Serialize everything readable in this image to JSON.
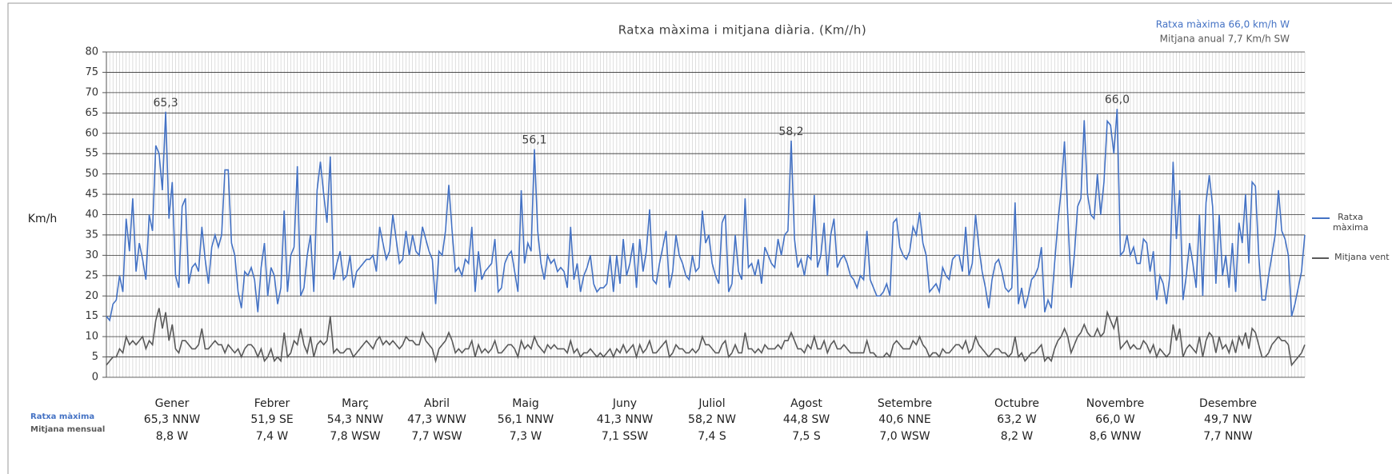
{
  "chart_data": {
    "type": "line",
    "title": "Ratxa màxima i mitjana diària. (Km//h)",
    "summary": [
      "Ratxa màxima 66,0 km/h  W",
      "Mitjana anual 7,7 Km/h SW"
    ],
    "y_label": "Km/h",
    "ylim": [
      0,
      80
    ],
    "yticks": [
      0,
      5,
      10,
      15,
      20,
      25,
      30,
      35,
      40,
      45,
      50,
      55,
      60,
      65,
      70,
      75,
      80
    ],
    "grid": true,
    "legend": "right",
    "series": [
      {
        "name": "Ratxa màxima",
        "color": "#4472c4",
        "values": [
          15,
          14,
          18,
          19,
          25,
          21,
          39,
          31,
          44,
          26,
          33,
          29,
          24,
          40,
          36,
          57,
          55,
          46,
          65.3,
          39,
          48,
          25,
          22,
          42,
          44,
          23,
          27,
          28,
          26,
          37,
          29,
          23,
          32,
          35,
          32,
          35,
          51,
          51,
          33,
          30,
          21,
          17,
          26,
          25,
          27,
          24,
          16,
          27,
          33,
          20,
          27,
          25,
          18,
          22,
          41,
          21,
          30,
          32,
          51.9,
          20,
          22,
          30,
          35,
          21,
          46,
          53,
          45,
          38,
          54.3,
          24,
          28,
          31,
          24,
          25,
          30,
          22,
          26,
          27,
          28,
          29,
          29,
          30,
          26,
          37,
          33,
          29,
          31,
          40,
          34,
          28,
          29,
          36,
          30,
          35,
          31,
          30,
          37,
          34,
          31,
          29,
          18,
          31,
          30,
          36,
          47.3,
          36,
          26,
          27,
          25,
          29,
          28,
          37,
          21,
          31,
          24,
          26,
          27,
          28,
          34,
          21,
          22,
          28,
          30,
          31,
          26,
          21,
          46,
          28,
          33,
          31,
          56.1,
          36,
          28,
          24,
          30,
          28,
          29,
          26,
          27,
          26,
          22,
          37,
          24,
          28,
          21,
          25,
          27,
          30,
          23,
          21,
          22,
          22,
          23,
          30,
          21,
          30,
          23,
          34,
          25,
          28,
          33,
          22,
          34,
          26,
          31,
          41.3,
          24,
          23,
          28,
          32,
          36,
          22,
          26,
          35,
          30,
          28,
          25,
          24,
          30,
          26,
          27,
          41,
          33,
          35,
          28,
          25,
          23,
          38,
          40,
          21,
          23,
          35,
          26,
          24,
          44,
          27,
          28,
          25,
          29,
          23,
          32,
          30,
          28,
          27,
          34,
          30,
          35,
          36,
          58.2,
          34,
          27,
          29,
          25,
          30,
          29,
          44.8,
          27,
          30,
          38,
          25,
          35,
          39,
          27,
          29,
          30,
          28,
          25,
          24,
          22,
          25,
          24,
          36,
          24,
          22,
          20,
          20,
          21,
          23,
          20,
          38,
          39,
          32,
          30,
          29,
          31,
          37,
          35,
          40.6,
          33,
          30,
          21,
          22,
          23,
          21,
          27,
          25,
          24,
          29,
          30,
          30,
          26,
          37,
          25,
          28,
          40,
          32,
          26,
          22,
          17,
          24,
          28,
          29,
          26,
          22,
          21,
          22,
          43,
          18,
          22,
          17,
          20,
          24,
          25,
          27,
          32,
          16,
          19,
          17,
          28,
          38,
          46,
          58,
          40,
          22,
          30,
          42,
          44,
          63.2,
          45,
          40,
          39,
          50,
          40,
          48,
          63,
          62,
          55,
          66.0,
          30,
          31,
          35,
          30,
          32,
          28,
          28,
          34,
          33,
          26,
          31,
          19,
          25,
          23,
          18,
          25,
          53,
          34,
          46,
          19,
          25,
          33,
          28,
          22,
          40,
          20,
          43,
          49.7,
          42,
          23,
          40,
          25,
          30,
          22,
          33,
          21,
          38,
          33,
          45,
          28,
          48,
          47,
          30,
          19,
          19,
          25,
          30,
          35,
          46,
          36,
          34,
          30,
          15,
          18,
          22,
          26,
          35
        ]
      },
      {
        "name": "Mitjana vent",
        "color": "#595959",
        "values": [
          3,
          4,
          5,
          5,
          7,
          6,
          10,
          8,
          9,
          8,
          9,
          10,
          7,
          9,
          8,
          14,
          17,
          12,
          16,
          9,
          13,
          7,
          6,
          9,
          9,
          8,
          7,
          7,
          8,
          12,
          7,
          7,
          8,
          9,
          8,
          8,
          6,
          8,
          7,
          6,
          7,
          5,
          7,
          8,
          8,
          7,
          5,
          7,
          4,
          5,
          7,
          4,
          5,
          4,
          11,
          5,
          6,
          9,
          8,
          12,
          8,
          6,
          10,
          5,
          8,
          9,
          8,
          9,
          15,
          6,
          7,
          6,
          6,
          7,
          7,
          5,
          6,
          7,
          8,
          9,
          8,
          7,
          9,
          10,
          8,
          9,
          8,
          9,
          8,
          7,
          8,
          10,
          9,
          9,
          8,
          8,
          11,
          9,
          8,
          7,
          4,
          7,
          8,
          9,
          11,
          9,
          6,
          7,
          6,
          7,
          7,
          9,
          5,
          8,
          6,
          7,
          6,
          7,
          9,
          6,
          6,
          7,
          8,
          8,
          7,
          5,
          9,
          7,
          8,
          7,
          10,
          8,
          7,
          6,
          8,
          7,
          8,
          7,
          7,
          7,
          6,
          9,
          6,
          7,
          5,
          6,
          6,
          7,
          6,
          5,
          6,
          5,
          6,
          7,
          5,
          7,
          6,
          8,
          6,
          7,
          8,
          5,
          8,
          6,
          7,
          9,
          6,
          6,
          7,
          8,
          9,
          5,
          6,
          8,
          7,
          7,
          6,
          6,
          7,
          6,
          7,
          10,
          8,
          8,
          7,
          6,
          6,
          8,
          9,
          5,
          6,
          8,
          6,
          6,
          11,
          7,
          7,
          6,
          7,
          6,
          8,
          7,
          7,
          7,
          8,
          7,
          9,
          9,
          11,
          9,
          7,
          7,
          6,
          8,
          7,
          10,
          7,
          7,
          9,
          6,
          8,
          9,
          7,
          7,
          8,
          7,
          6,
          6,
          6,
          6,
          6,
          9,
          6,
          6,
          5,
          5,
          5,
          6,
          5,
          8,
          9,
          8,
          7,
          7,
          7,
          9,
          8,
          10,
          8,
          7,
          5,
          6,
          6,
          5,
          7,
          6,
          6,
          7,
          8,
          8,
          7,
          9,
          6,
          7,
          10,
          8,
          7,
          6,
          5,
          6,
          7,
          7,
          6,
          6,
          5,
          6,
          10,
          5,
          6,
          4,
          5,
          6,
          6,
          7,
          8,
          4,
          5,
          4,
          7,
          9,
          10,
          12,
          10,
          6,
          8,
          10,
          11,
          13,
          11,
          10,
          10,
          12,
          10,
          11,
          16,
          14,
          12,
          15,
          7,
          8,
          9,
          7,
          8,
          7,
          7,
          9,
          8,
          6,
          8,
          5,
          7,
          6,
          5,
          6,
          13,
          9,
          12,
          5,
          7,
          8,
          7,
          6,
          10,
          5,
          9,
          11,
          10,
          6,
          10,
          7,
          8,
          6,
          9,
          6,
          10,
          8,
          11,
          7,
          12,
          11,
          8,
          5,
          5,
          6,
          8,
          9,
          10,
          9,
          9,
          8,
          3,
          4,
          5,
          6,
          8
        ]
      }
    ],
    "annotations": [
      {
        "text": "65,3",
        "value": 65.3
      },
      {
        "text": "56,1",
        "value": 56.1
      },
      {
        "text": "58,2",
        "value": 58.2
      },
      {
        "text": "66,0",
        "value": 66.0
      }
    ],
    "monthly": {
      "row_labels": [
        "Ratxa màxima",
        "Mitjana mensual"
      ],
      "months": [
        {
          "name": "Gener",
          "max": "65,3 NNW",
          "mean": "8,8 W"
        },
        {
          "name": "Febrer",
          "max": "51,9 SE",
          "mean": "7,4 W"
        },
        {
          "name": "Març",
          "max": "54,3 NNW",
          "mean": "7,8 WSW"
        },
        {
          "name": "Abril",
          "max": "47,3 WNW",
          "mean": "7,7 WSW"
        },
        {
          "name": "Maig",
          "max": "56,1 NNW",
          "mean": "7,3 W"
        },
        {
          "name": "Juny",
          "max": "41,3 NNW",
          "mean": "7,1 SSW"
        },
        {
          "name": "Juliol",
          "max": "58,2 NW",
          "mean": "7,4 S"
        },
        {
          "name": "Agost",
          "max": "44,8 SW",
          "mean": "7,5 S"
        },
        {
          "name": "Setembre",
          "max": "40,6 NNE",
          "mean": "7,0 WSW"
        },
        {
          "name": "Octubre",
          "max": "63,2 W",
          "mean": "8,2 W"
        },
        {
          "name": "Novembre",
          "max": "66,0 W",
          "mean": "8,6 WNW"
        },
        {
          "name": "Desembre",
          "max": "49,7 NW",
          "mean": "7,7 NNW"
        }
      ]
    }
  }
}
